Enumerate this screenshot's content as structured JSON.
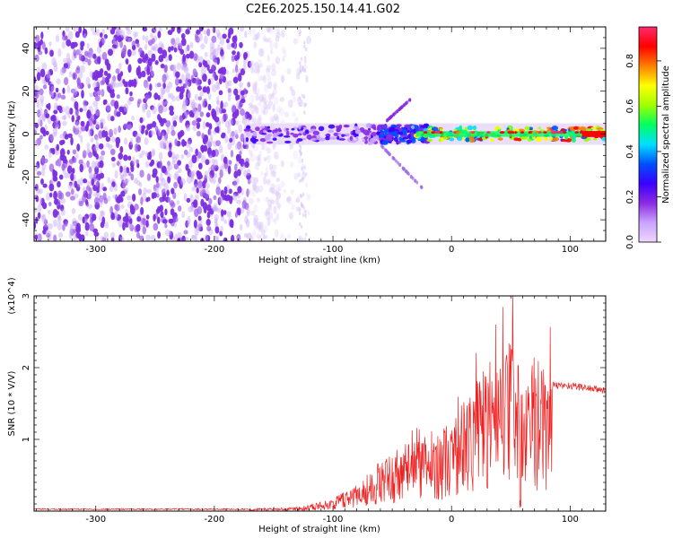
{
  "title": "C2E6.2025.150.14.41.G02",
  "chart_data": [
    {
      "type": "heatmap",
      "xlabel": "Height of straight line (km)",
      "ylabel": "Frequency (Hz)",
      "xlim": [
        -352,
        130
      ],
      "ylim": [
        -50,
        50
      ],
      "xticks": [
        -300,
        -200,
        -100,
        0,
        100
      ],
      "xtick_labels": [
        "-300",
        "-200",
        "-100",
        "0",
        "100"
      ],
      "yticks": [
        -40,
        -20,
        0,
        20,
        40
      ],
      "ytick_labels": [
        "-40",
        "-20",
        "0",
        "20",
        "40"
      ],
      "colorbar": {
        "label": "Normalized spectral amplitude",
        "ticks": [
          0.0,
          0.2,
          0.4,
          0.6,
          0.8
        ],
        "tick_labels": [
          "0.0",
          "0.2",
          "0.4",
          "0.6",
          "0.8"
        ],
        "range": [
          0,
          0.95
        ],
        "colors": [
          "#f0d6ff",
          "#c9a3ff",
          "#8a2be2",
          "#3a00ff",
          "#0050ff",
          "#00e0ff",
          "#00ff60",
          "#a0ff00",
          "#ffff00",
          "#ff8000",
          "#ff0000",
          "#ff2a6a"
        ]
      },
      "regions": [
        {
          "x_range": [
            -352,
            -160
          ],
          "freq_range": [
            -50,
            50
          ],
          "amplitude": 0.05,
          "description_level": "scattered noise"
        },
        {
          "x_range": [
            -175,
            -50
          ],
          "freq_center": 0,
          "freq_halfwidth": 4,
          "amplitude": 0.2
        },
        {
          "x_range": [
            -60,
            -20
          ],
          "freq_center": 0,
          "freq_halfwidth": 4,
          "amplitude": 0.3
        },
        {
          "x_range": [
            -30,
            130
          ],
          "freq_center": 0,
          "freq_halfwidth": 3,
          "amplitude": 0.7
        }
      ]
    },
    {
      "type": "line",
      "xlabel": "Height of straight line (km)",
      "ylabel": "SNR (10 * V/V)",
      "y_multiplier": "(x10^4)",
      "xlim": [
        -352,
        130
      ],
      "ylim": [
        0,
        3
      ],
      "xticks": [
        -300,
        -200,
        -100,
        0,
        100
      ],
      "xtick_labels": [
        "-300",
        "-200",
        "-100",
        "0",
        "100"
      ],
      "yticks": [
        1,
        2,
        3
      ],
      "ytick_labels": [
        "1",
        "2",
        "3"
      ],
      "color": "#ee2222",
      "envelope": [
        {
          "x": -352,
          "y": 0.03
        },
        {
          "x": -170,
          "y": 0.03
        },
        {
          "x": -130,
          "y": 0.05
        },
        {
          "x": -100,
          "y": 0.15
        },
        {
          "x": -80,
          "y": 0.35
        },
        {
          "x": -60,
          "y": 0.6
        },
        {
          "x": -40,
          "y": 0.85
        },
        {
          "x": -20,
          "y": 0.95
        },
        {
          "x": 0,
          "y": 1.1
        },
        {
          "x": 15,
          "y": 1.5
        },
        {
          "x": 30,
          "y": 1.8
        },
        {
          "x": 45,
          "y": 1.9
        },
        {
          "x": 55,
          "y": 2.3
        },
        {
          "x": 60,
          "y": 1.3
        },
        {
          "x": 70,
          "y": 1.9
        },
        {
          "x": 85,
          "y": 1.75
        },
        {
          "x": 100,
          "y": 1.75
        },
        {
          "x": 130,
          "y": 1.68
        }
      ],
      "peak": {
        "x": 58,
        "y": 3.0
      }
    }
  ]
}
